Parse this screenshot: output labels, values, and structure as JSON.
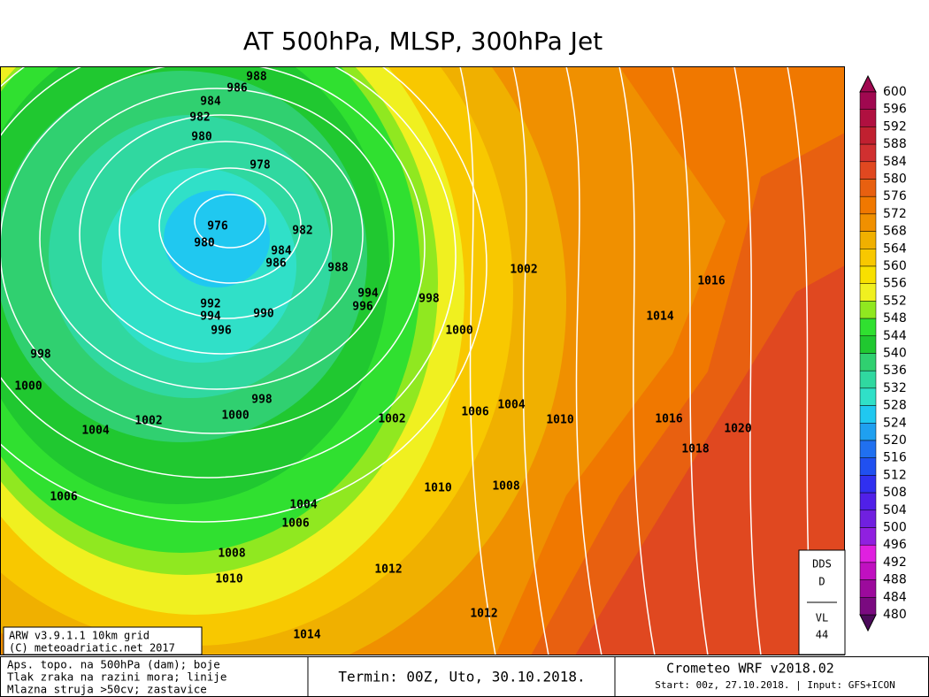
{
  "title": "AT 500hPa, MLSP, 300hPa Jet",
  "colorbar": {
    "levels": [
      600,
      596,
      592,
      588,
      584,
      580,
      576,
      572,
      568,
      564,
      560,
      556,
      552,
      548,
      544,
      540,
      536,
      532,
      528,
      524,
      520,
      516,
      512,
      508,
      504,
      500,
      496,
      492,
      488,
      484,
      480
    ],
    "colors": [
      "#a00850",
      "#b01040",
      "#c02030",
      "#d03030",
      "#e04820",
      "#e86010",
      "#f07800",
      "#f09000",
      "#f0b000",
      "#f8c800",
      "#f8e000",
      "#f0f020",
      "#90e820",
      "#30e030",
      "#20c830",
      "#30d070",
      "#30d8a0",
      "#30e0c8",
      "#20c8f0",
      "#1fa0f0",
      "#2070f0",
      "#2050f0",
      "#3030f0",
      "#5020e8",
      "#7020e0",
      "#9020e0",
      "#e020e0",
      "#c010c0",
      "#9c0a9c",
      "#7a0a80",
      "#4b0a5a"
    ]
  },
  "isobar_labels": [
    988,
    986,
    984,
    982,
    980,
    978,
    976,
    980,
    982,
    984,
    986,
    988,
    994,
    996,
    998,
    992,
    994,
    990,
    996,
    998,
    1000,
    1000,
    1002,
    1016,
    1014,
    998,
    1000,
    1002,
    1004,
    1002,
    1006,
    1004,
    1010,
    1016,
    1020,
    1018,
    1006,
    1004,
    1006,
    1010,
    1008,
    1008,
    1010,
    1012,
    1012,
    1014
  ],
  "model_box": {
    "line1": "ARW v3.9.1.1 10km grid",
    "line2": "(C) meteoadriatic.net 2017"
  },
  "info_box": {
    "top1": "DDS",
    "top2": "D",
    "bottom1": "VL",
    "bottom2": "44"
  },
  "footer": {
    "legend": [
      "Aps. topo. na 500hPa (dam); boje",
      "Tlak zraka na razini mora; linije",
      "Mlazna struja >50cv; zastavice"
    ],
    "termin": "Termin: 00Z, Uto, 30.10.2018.",
    "product": "Crometeo WRF v2018.02",
    "start": "Start: 00z, 27.10.2018. | Input: GFS+ICON"
  }
}
